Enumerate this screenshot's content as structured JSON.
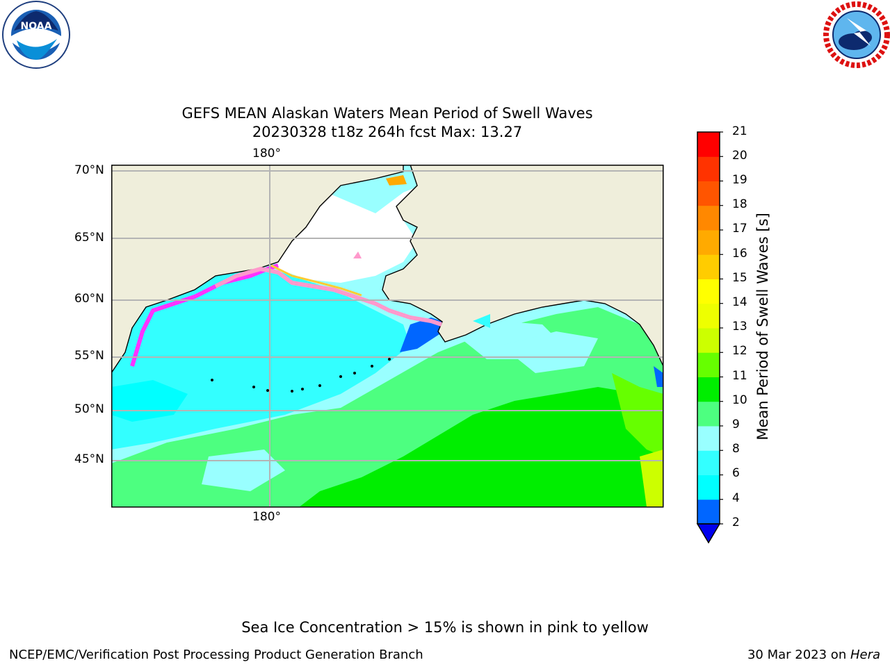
{
  "title": {
    "line1": "GEFS MEAN Alaskan Waters Mean Period of Swell Waves",
    "line2": "20230328 t18z 264h fcst   Max: 13.27"
  },
  "logos": {
    "noaa": {
      "text": "NOAA",
      "ring_text": "NATIONAL OCEANIC AND ATMOSPHERIC ADMINISTRATION · U.S. DEPARTMENT OF COMMERCE"
    },
    "nws": {
      "ring_text": "NATIONAL WEATHER SERVICE"
    }
  },
  "map": {
    "projection": "polar stereographic view of the Bering Sea and North Pacific",
    "lat_labels": [
      "70°N",
      "65°N",
      "60°N",
      "55°N",
      "50°N",
      "45°N"
    ],
    "lon_label_top": "180°",
    "lon_label_bottom": "180°",
    "land_color": "#efeedb",
    "ice_note_colors": [
      "#ff33ff",
      "#ff99cc",
      "#ffcc33",
      "#ffff66"
    ]
  },
  "colorbar": {
    "label": "Mean Period of Swell Waves [s]",
    "ticks": [
      "21",
      "20",
      "19",
      "18",
      "17",
      "16",
      "15",
      "14",
      "13",
      "12",
      "11",
      "10",
      "9",
      "8",
      "6",
      "4",
      "2"
    ],
    "colors_bottom_to_top": [
      "#0066ff",
      "#00ffff",
      "#33ffff",
      "#99ffff",
      "#4dff80",
      "#00ee00",
      "#66ff00",
      "#ccff00",
      "#eeff00",
      "#ffff00",
      "#ffcc00",
      "#ffaa00",
      "#ff8800",
      "#ff5500",
      "#ff3300",
      "#ff0000"
    ],
    "under_color": "#0000ee"
  },
  "footer": {
    "note": "Sea Ice Concentration > 15% is shown in pink to yellow",
    "left": "NCEP/EMC/Verification Post Processing Product Generation Branch",
    "right_date": "30 Mar 2023 on ",
    "right_machine": "Hera"
  }
}
